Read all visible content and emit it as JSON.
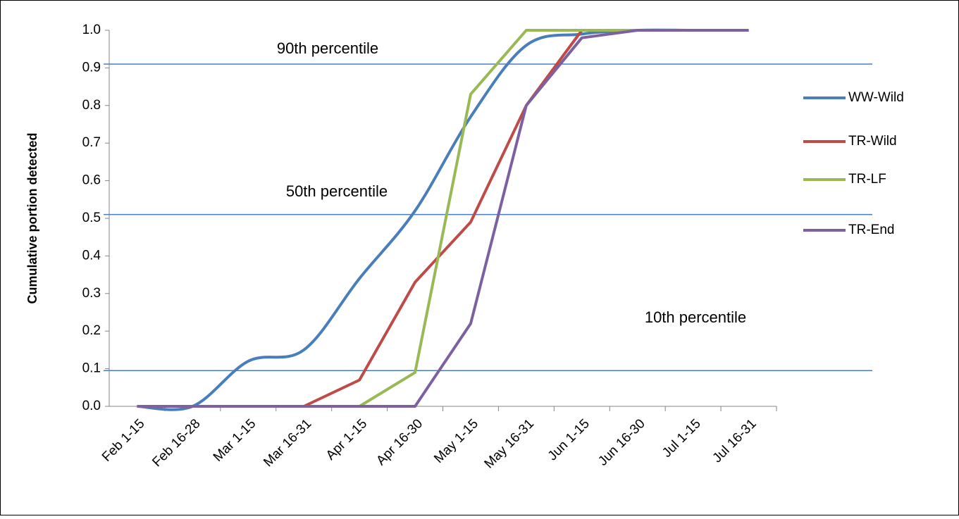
{
  "chart_data": {
    "type": "line",
    "y_label": "Cumulative portion detected",
    "categories": [
      "Feb 1-15",
      "Feb 16-28",
      "Mar 1-15",
      "Mar 16-31",
      "Apr 1-15",
      "Apr 16-30",
      "May 1-15",
      "May 16-31",
      "Jun 1-15",
      "Jun 16-30",
      "Jul 1-15",
      "Jul 16-31"
    ],
    "series": [
      {
        "name": "WW-Wild",
        "color": "#4a7ebb",
        "smooth": true,
        "values": [
          0,
          0,
          0.12,
          0.15,
          0.34,
          0.52,
          0.77,
          0.96,
          0.99,
          1.0,
          1.0,
          1.0
        ]
      },
      {
        "name": "TR-Wild",
        "color": "#be4b48",
        "values": [
          0,
          0,
          0,
          0,
          0.07,
          0.33,
          0.49,
          0.8,
          1.0,
          1.0,
          1.0,
          1.0
        ]
      },
      {
        "name": "TR-LF",
        "color": "#98b954",
        "values": [
          0,
          0,
          0,
          0,
          0,
          0.09,
          0.83,
          1.0,
          1.0,
          1.0,
          1.0,
          1.0
        ]
      },
      {
        "name": "TR-End",
        "color": "#7d60a0",
        "values": [
          0,
          0,
          0,
          0,
          0,
          0,
          0.22,
          0.8,
          0.98,
          1.0,
          1.0,
          1.0
        ]
      }
    ],
    "reference_lines": [
      {
        "label": "90th percentile",
        "value": 0.91,
        "color": "#4a7ebb"
      },
      {
        "label": "50th  percentile",
        "value": 0.51,
        "color": "#4a7ebb"
      },
      {
        "label": "10th percentile",
        "value": 0.095,
        "color": "#4a7ebb"
      }
    ],
    "ylim": [
      0,
      1.0
    ],
    "yticks": [
      {
        "value": 0,
        "label": "0.0"
      },
      0.1,
      0.2,
      0.3,
      0.4,
      0.5,
      0.6,
      0.7,
      0.8,
      0.9,
      {
        "value": 1.0,
        "label": "1.0"
      }
    ],
    "legend": "right"
  }
}
